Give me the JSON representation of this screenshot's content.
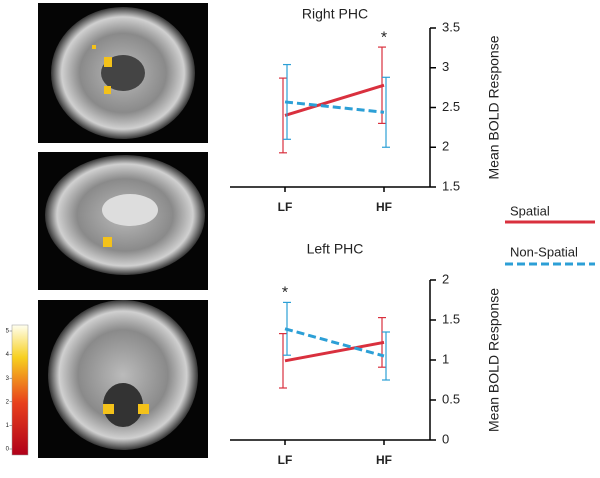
{
  "chart_data": [
    {
      "type": "line",
      "title": "Right PHC",
      "y_label": "Mean BOLD Response",
      "categories": [
        "LF",
        "HF"
      ],
      "series": [
        {
          "name": "Spatial",
          "color": "#d9303e",
          "linestyle": "solid",
          "values": [
            2.4,
            2.78
          ],
          "errors": [
            0.47,
            0.48
          ]
        },
        {
          "name": "Non-Spatial",
          "color": "#2c9fd6",
          "linestyle": "dashed",
          "values": [
            2.57,
            2.44
          ],
          "errors": [
            0.47,
            0.44
          ]
        }
      ],
      "ylim": [
        1.5,
        3.5
      ],
      "yticks": [
        1.5,
        2,
        2.5,
        3,
        3.5
      ],
      "annotations": [
        {
          "text": "*",
          "x": "HF"
        }
      ]
    },
    {
      "type": "line",
      "title": "Left PHC",
      "y_label": "Mean BOLD Response",
      "categories": [
        "LF",
        "HF"
      ],
      "series": [
        {
          "color": "#d9303e",
          "linestyle": "solid",
          "values": [
            0.99,
            1.22
          ],
          "errors": [
            0.34,
            0.31
          ]
        },
        {
          "color": "#2c9fd6",
          "linestyle": "dashed",
          "values": [
            1.39,
            1.05
          ],
          "errors": [
            0.33,
            0.3
          ]
        }
      ],
      "ylim": [
        0,
        2
      ],
      "yticks": [
        0,
        0.5,
        1,
        1.5,
        2
      ],
      "annotations": [
        {
          "text": "*",
          "x": "LF"
        }
      ]
    }
  ],
  "colorbar": {
    "ticks": [
      0,
      1,
      2,
      3,
      4,
      5
    ]
  }
}
